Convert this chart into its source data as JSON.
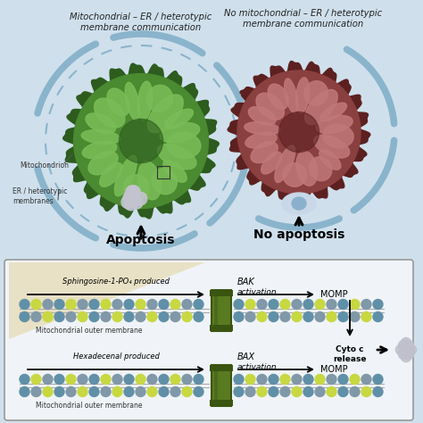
{
  "bg_color": "#cfe0ec",
  "left_title": "Mitochondrial – ER / heterotypic\nmembrane communication",
  "right_title": "No mitochondrial – ER / heterotypic\nmembrane communication",
  "apoptosis_label": "Apoptosis",
  "no_apoptosis_label": "No apoptosis",
  "mito_label": "Mitochondrion",
  "er_label": "ER / heterotypic\nmembranes",
  "s1p_label": "Sphingosine-1-PO₄ produced",
  "hex_label": "Hexadecenal produced",
  "momp_label": "MOMP",
  "cyto_label": "Cyto c\nrelease",
  "mem_label": "Mitochondrial outer membrane",
  "bak_text1": "BAK",
  "bak_text2": "activation",
  "bax_text1": "BAX",
  "bax_text2": "activation",
  "er_arc_color": "#8ab4cc",
  "green_outer": "#2d5c1e",
  "green_mid": "#4a8a30",
  "green_light": "#7abd58",
  "pink_outer": "#5c2020",
  "pink_mid": "#8b4040",
  "pink_light": "#c07878",
  "protein_dark": "#3a5510",
  "protein_mid": "#5a7a20",
  "dot_blue": "#6090a8",
  "dot_yellow": "#c8d840",
  "dot_grey": "#8098a8",
  "beige": "#e8dfc0",
  "box_edge": "#999999",
  "arrow_black": "#111111"
}
